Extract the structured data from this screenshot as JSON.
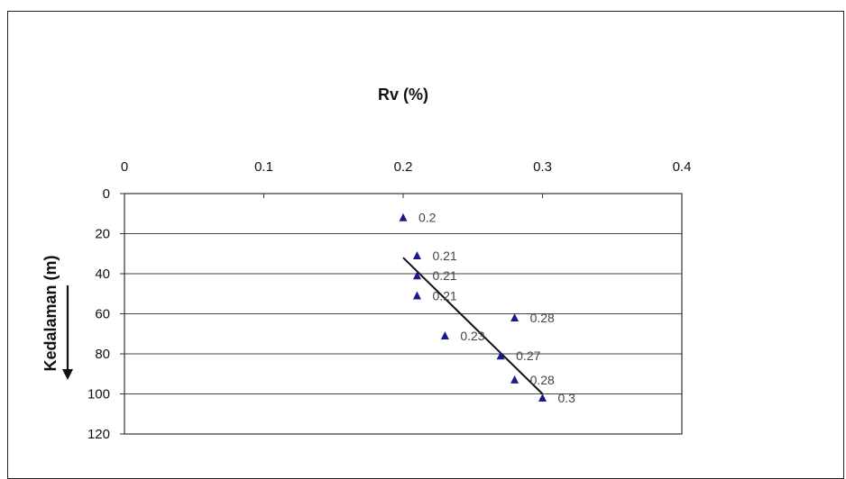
{
  "chart_data": {
    "type": "scatter",
    "title": "Rv (%)",
    "xlabel": "",
    "ylabel": "Kedalaman (m)",
    "x_axis_position": "top",
    "y_axis_inverted": true,
    "xlim": [
      0,
      0.4
    ],
    "ylim": [
      0,
      120
    ],
    "x_ticks": [
      "0",
      "0.1",
      "0.2",
      "0.3",
      "0.4"
    ],
    "y_ticks": [
      "0",
      "20",
      "40",
      "60",
      "80",
      "100",
      "120"
    ],
    "grid": "horizontal",
    "marker": "triangle",
    "marker_color": "#1a1a8c",
    "points": [
      {
        "x": 0.2,
        "y": 12,
        "label": "0.2"
      },
      {
        "x": 0.21,
        "y": 31,
        "label": "0.21"
      },
      {
        "x": 0.21,
        "y": 41,
        "label": "0.21"
      },
      {
        "x": 0.21,
        "y": 51,
        "label": "0.21"
      },
      {
        "x": 0.28,
        "y": 62,
        "label": "0.28"
      },
      {
        "x": 0.23,
        "y": 71,
        "label": "0.23"
      },
      {
        "x": 0.27,
        "y": 81,
        "label": "0.27"
      },
      {
        "x": 0.28,
        "y": 93,
        "label": "0.28"
      },
      {
        "x": 0.3,
        "y": 102,
        "label": "0.3"
      }
    ],
    "trendline": {
      "type": "linear",
      "x": [
        0.2,
        0.3
      ],
      "y": [
        32,
        100
      ]
    },
    "annotations": [
      {
        "type": "arrow",
        "direction": "down",
        "near": "ylabel"
      }
    ]
  }
}
